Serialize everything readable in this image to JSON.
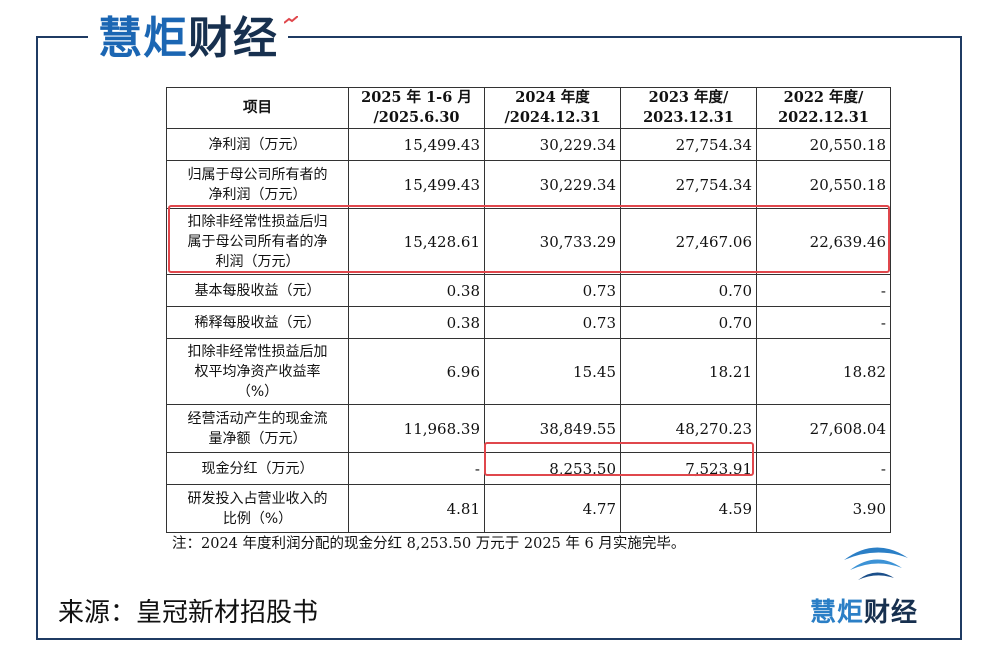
{
  "brand": {
    "part1": "慧炬",
    "part2": "财经"
  },
  "table": {
    "headers": [
      [
        "项目"
      ],
      [
        "2025 年 1-6 月",
        "/2025.6.30"
      ],
      [
        "2024 年度",
        "/2024.12.31"
      ],
      [
        "2023 年度/",
        "2023.12.31"
      ],
      [
        "2022 年度/",
        "2022.12.31"
      ]
    ],
    "rows": [
      {
        "label": [
          "净利润（万元）"
        ],
        "values": [
          "15,499.43",
          "30,229.34",
          "27,754.34",
          "20,550.18"
        ]
      },
      {
        "label": [
          "归属于母公司所有者的",
          "净利润（万元）"
        ],
        "values": [
          "15,499.43",
          "30,229.34",
          "27,754.34",
          "20,550.18"
        ]
      },
      {
        "label": [
          "扣除非经常性损益后归",
          "属于母公司所有者的净",
          "利润（万元）"
        ],
        "values": [
          "15,428.61",
          "30,733.29",
          "27,467.06",
          "22,639.46"
        ]
      },
      {
        "label": [
          "基本每股收益（元）"
        ],
        "values": [
          "0.38",
          "0.73",
          "0.70",
          "-"
        ]
      },
      {
        "label": [
          "稀释每股收益（元）"
        ],
        "values": [
          "0.38",
          "0.73",
          "0.70",
          "-"
        ]
      },
      {
        "label": [
          "扣除非经常性损益后加",
          "权平均净资产收益率",
          "（%）"
        ],
        "values": [
          "6.96",
          "15.45",
          "18.21",
          "18.82"
        ]
      },
      {
        "label": [
          "经营活动产生的现金流",
          "量净额（万元）"
        ],
        "values": [
          "11,968.39",
          "38,849.55",
          "48,270.23",
          "27,608.04"
        ]
      },
      {
        "label": [
          "现金分红（万元）"
        ],
        "values": [
          "-",
          "8,253.50",
          "7,523.91",
          "-"
        ]
      },
      {
        "label": [
          "研发投入占营业收入的",
          "比例（%）"
        ],
        "values": [
          "4.81",
          "4.77",
          "4.59",
          "3.90"
        ]
      }
    ]
  },
  "note": "注：2024 年度利润分配的现金分红 8,253.50 万元于 2025 年 6 月实施完毕。",
  "source": "来源：皇冠新材招股书",
  "colors": {
    "frame": "#1f3b63",
    "highlight": "#e0474c",
    "brand_blue": "#1b66b3",
    "brand_dark": "#17304f"
  }
}
